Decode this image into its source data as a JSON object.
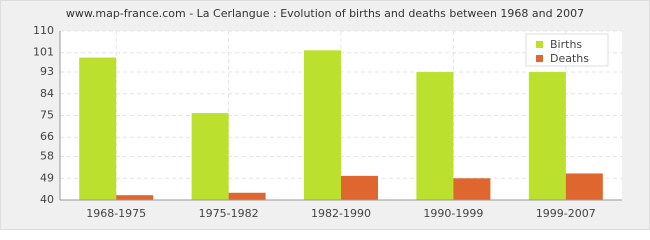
{
  "chart_data": {
    "type": "bar",
    "title": "www.map-france.com - La Cerlangue : Evolution of births and deaths between 1968 and 2007",
    "categories": [
      "1968-1975",
      "1975-1982",
      "1982-1990",
      "1990-1999",
      "1999-2007"
    ],
    "series": [
      {
        "name": "Births",
        "color": "#bbe02d",
        "values": [
          99,
          76,
          102,
          93,
          93
        ]
      },
      {
        "name": "Deaths",
        "color": "#e0662f",
        "values": [
          42,
          43,
          50,
          49,
          51
        ]
      }
    ],
    "ylim": [
      40,
      110
    ],
    "yticks": [
      40,
      49,
      58,
      66,
      75,
      84,
      93,
      101,
      110
    ],
    "grid": true,
    "legend": "top-right"
  }
}
